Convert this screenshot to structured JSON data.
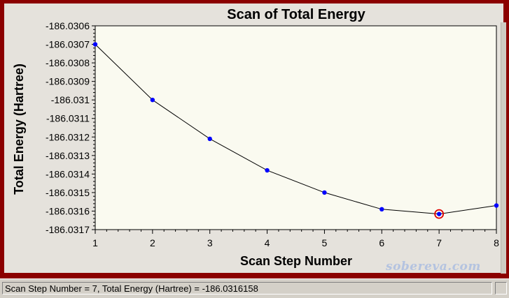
{
  "status": {
    "text": "Scan Step Number = 7, Total Energy (Hartree) = -186.0316158"
  },
  "watermark": "sobereva.com",
  "colors": {
    "frame": "#8b0000",
    "panel": "#e5e2dc",
    "plot_background": "#fafaf0",
    "marker": "#0000ff",
    "line": "#000000",
    "highlight_ring": "#e00000"
  },
  "chart_data": {
    "type": "line",
    "title": "Scan of Total Energy",
    "xlabel": "Scan Step Number",
    "ylabel": "Total Energy (Hartree)",
    "x_ticks": [
      "1",
      "2",
      "3",
      "4",
      "5",
      "6",
      "7",
      "8"
    ],
    "y_ticks": [
      "-186.0306",
      "-186.0307",
      "-186.0308",
      "-186.0309",
      "-186.031",
      "-186.0311",
      "-186.0312",
      "-186.0313",
      "-186.0314",
      "-186.0315",
      "-186.0316",
      "-186.0317"
    ],
    "xlim": [
      1,
      8
    ],
    "ylim": [
      -186.0317,
      -186.0306
    ],
    "grid": false,
    "series": [
      {
        "x": [
          1,
          2,
          3,
          4,
          5,
          6,
          7,
          8
        ],
        "values": [
          -186.0307,
          -186.031,
          -186.03121,
          -186.03138,
          -186.0315,
          -186.03159,
          -186.0316158,
          -186.03157
        ]
      }
    ],
    "highlighted_point": {
      "x": 7,
      "y": -186.0316158
    }
  }
}
